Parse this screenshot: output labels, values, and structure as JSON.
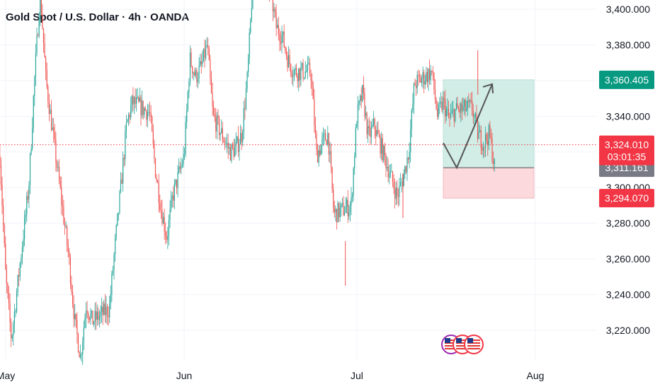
{
  "header": {
    "title": "Gold Spot / U.S. Dollar · 4h · OANDA"
  },
  "colors": {
    "up": "#26a69a",
    "down": "#ef5350",
    "target_badge": "#089981",
    "price_badge": "#f23645",
    "entry_badge": "#787b86",
    "profit_zone": "#d1ede6",
    "loss_zone": "#fbd9dc",
    "grid": "#f0f3fa",
    "arrow": "#555555"
  },
  "price_labels": {
    "target": "3,360.405",
    "current": "3,324.010",
    "countdown": "03:01:35",
    "entry": "3,311.161",
    "stop": "3,294.070"
  },
  "chart_data": {
    "type": "candlestick",
    "title": "Gold Spot / U.S. Dollar · 4h · OANDA",
    "x_ticks": [
      "May",
      "Jun",
      "Jul",
      "Aug"
    ],
    "y_ticks": [
      "3,220.000",
      "3,240.000",
      "3,260.000",
      "3,280.000",
      "3,300.000",
      "3,320.000",
      "3,340.000",
      "3,360.000",
      "3,380.000",
      "3,400.000"
    ],
    "ylim": [
      3205,
      3403
    ],
    "grid": true,
    "path": [
      [
        "04-30",
        3318
      ],
      [
        "05-01",
        3250
      ],
      [
        "05-02",
        3215
      ],
      [
        "05-05",
        3300
      ],
      [
        "05-06",
        3360
      ],
      [
        "05-07",
        3410
      ],
      [
        "05-08",
        3360
      ],
      [
        "05-09",
        3335
      ],
      [
        "05-12",
        3260
      ],
      [
        "05-13",
        3225
      ],
      [
        "05-14",
        3205
      ],
      [
        "05-15",
        3235
      ],
      [
        "05-16",
        3225
      ],
      [
        "05-19",
        3232
      ],
      [
        "05-20",
        3268
      ],
      [
        "05-21",
        3300
      ],
      [
        "05-22",
        3335
      ],
      [
        "05-23",
        3348
      ],
      [
        "05-26",
        3342
      ],
      [
        "05-27",
        3310
      ],
      [
        "05-28",
        3288
      ],
      [
        "05-29",
        3272
      ],
      [
        "05-30",
        3295
      ],
      [
        "06-01",
        3318
      ],
      [
        "06-02",
        3372
      ],
      [
        "06-03",
        3362
      ],
      [
        "06-04",
        3368
      ],
      [
        "06-05",
        3380
      ],
      [
        "06-06",
        3340
      ],
      [
        "06-09",
        3320
      ],
      [
        "06-10",
        3322
      ],
      [
        "06-11",
        3330
      ],
      [
        "06-12",
        3362
      ],
      [
        "06-13",
        3420
      ],
      [
        "06-16",
        3410
      ],
      [
        "06-17",
        3390
      ],
      [
        "06-18",
        3385
      ],
      [
        "06-19",
        3372
      ],
      [
        "06-20",
        3365
      ],
      [
        "06-23",
        3365
      ],
      [
        "06-24",
        3318
      ],
      [
        "06-25",
        3325
      ],
      [
        "06-26",
        3330
      ],
      [
        "06-27",
        3285
      ],
      [
        "06-30",
        3290
      ],
      [
        "07-01",
        3340
      ],
      [
        "07-02",
        3353
      ],
      [
        "07-03",
        3328
      ],
      [
        "07-04",
        3335
      ],
      [
        "07-07",
        3305
      ],
      [
        "07-08",
        3295
      ],
      [
        "07-09",
        3305
      ],
      [
        "07-10",
        3320
      ],
      [
        "07-11",
        3358
      ],
      [
        "07-14",
        3365
      ],
      [
        "07-15",
        3340
      ],
      [
        "07-16",
        3348
      ],
      [
        "07-17",
        3338
      ],
      [
        "07-18",
        3343
      ],
      [
        "07-21",
        3345
      ],
      [
        "07-22",
        3330
      ],
      [
        "07-23",
        3325
      ],
      [
        "07-24",
        3330
      ],
      [
        "07-25",
        3310
      ]
    ],
    "low_spikes": [
      [
        "06-29",
        3245
      ],
      [
        "07-09",
        3283
      ]
    ],
    "high_spikes": [
      [
        "07-22",
        3377
      ]
    ],
    "projection": {
      "profit_zone": [
        3311.161,
        3360.405
      ],
      "loss_zone": [
        3294.07,
        3311.161
      ],
      "arrow": [
        [
          3325,
          3321
        ],
        [
          3311.161,
          3311
        ],
        [
          3358,
          3364
        ]
      ]
    },
    "last_price": 3324.01,
    "event_markers": 3
  }
}
